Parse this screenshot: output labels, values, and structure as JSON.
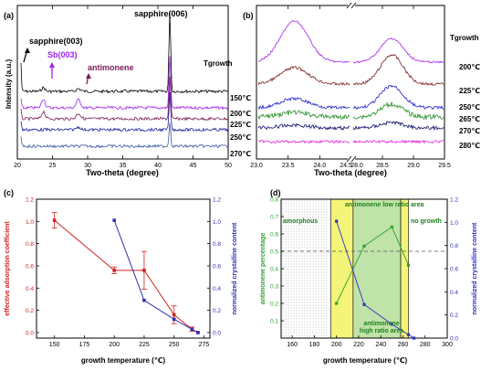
{
  "chart_data": [
    {
      "panel": "(a)",
      "type": "line",
      "xlabel": "Two-theta (degree)",
      "ylabel": "Intensity (a.u.)",
      "xlim": [
        20,
        50
      ],
      "xticks": [
        "20",
        "25",
        "30",
        "35",
        "40",
        "45",
        "50"
      ],
      "legend_title": "Tgrowth",
      "series": [
        {
          "name": "150℃",
          "color": "#000000"
        },
        {
          "name": "200℃",
          "color": "#a020f0"
        },
        {
          "name": "225℃",
          "color": "#7a1a55"
        },
        {
          "name": "250℃",
          "color": "#1a1aa0"
        },
        {
          "name": "270℃",
          "color": "#3b5ba0"
        }
      ],
      "annotations": [
        {
          "text": "sapphire(006)",
          "color": "#000000",
          "x": 41.7
        },
        {
          "text": "sapphire(003)",
          "color": "#000000",
          "x": 20.5
        },
        {
          "text": "Sb(003)",
          "color": "#a020f0",
          "x": 23.7
        },
        {
          "text": "antimonene",
          "color": "#7a1a55",
          "x": 28.8
        }
      ]
    },
    {
      "panel": "(b)",
      "type": "line",
      "xlabel": "Two-theta (degree)",
      "xticks": [
        "23.0",
        "23.5",
        "24.0",
        "24.5",
        "28.0",
        "28.5",
        "29.0",
        "29.5"
      ],
      "legend_title": "Tgrowth",
      "series": [
        {
          "name": "200℃",
          "color": "#a020f0"
        },
        {
          "name": "225℃",
          "color": "#7a1a1a"
        },
        {
          "name": "250℃",
          "color": "#1a1ad0"
        },
        {
          "name": "265℃",
          "color": "#208a20"
        },
        {
          "name": "270℃",
          "color": "#0a0a6a"
        },
        {
          "name": "280℃",
          "color": "#e020e0"
        }
      ],
      "peaks": [
        23.6,
        28.65
      ]
    },
    {
      "panel": "(c)",
      "type": "line",
      "xlabel": "growth temperature (℃)",
      "ylabel_left": "effective adsorption coefficient",
      "ylabel_right": "normalized crystalline content",
      "xlim": [
        135,
        280
      ],
      "ylim": [
        -0.05,
        1.2
      ],
      "xticks": [
        150,
        175,
        200,
        225,
        250,
        275
      ],
      "yticks": [
        "0.0",
        "0.2",
        "0.4",
        "0.6",
        "0.8",
        "1.0",
        "1.2"
      ],
      "series": [
        {
          "name": "effective adsorption coefficient",
          "color": "#d42020",
          "axis": "left",
          "x": [
            150,
            200,
            225,
            250,
            265,
            270
          ],
          "y": [
            1.01,
            0.56,
            0.56,
            0.16,
            0.03,
            0.0
          ],
          "err": [
            0.07,
            0.03,
            0.17,
            0.08,
            0.02,
            0.0
          ]
        },
        {
          "name": "normalized crystalline content",
          "color": "#3030b0",
          "axis": "right",
          "x": [
            200,
            225,
            250,
            265,
            270
          ],
          "y": [
            1.01,
            0.29,
            0.12,
            0.03,
            0.0
          ]
        }
      ]
    },
    {
      "panel": "(d)",
      "type": "line",
      "xlabel": "growth temperature (℃)",
      "ylabel_left": "antimonene percentage",
      "ylabel_right": "normalized crystalline content",
      "xlim": [
        150,
        300
      ],
      "ylim": [
        0,
        0.8
      ],
      "ylim_right": [
        0,
        1.2
      ],
      "xticks": [
        160,
        180,
        200,
        220,
        240,
        260,
        280,
        300
      ],
      "yticks_left": [
        "0.1",
        "0.2",
        "0.3",
        "0.4",
        "0.5",
        "0.6",
        "0.7",
        "0.8"
      ],
      "yticks_right": [
        "0.0",
        "0.2",
        "0.4",
        "0.6",
        "0.8",
        "1.0",
        "1.2"
      ],
      "regions": [
        {
          "label": "amorphous",
          "from": 150,
          "to": 195,
          "fill": "hatch"
        },
        {
          "label": "",
          "from": 195,
          "to": 215,
          "fill": "#f4f478"
        },
        {
          "label": "antimonene low ratio area",
          "from": 215,
          "to": 258,
          "fill": "#bfe3a8"
        },
        {
          "label": "",
          "from": 258,
          "to": 265,
          "fill": "#f4f478"
        },
        {
          "label": "no growth",
          "from": 265,
          "to": 300,
          "fill": "none"
        }
      ],
      "region_label_inner": "antimonene high ratio area",
      "dashed_line_y": 0.5,
      "series": [
        {
          "name": "antimonene percentage",
          "color": "#30a030",
          "axis": "left",
          "x": [
            200,
            225,
            250,
            265
          ],
          "y": [
            0.2,
            0.53,
            0.64,
            0.42
          ]
        },
        {
          "name": "normalized crystalline content",
          "color": "#3030c0",
          "axis": "right",
          "x": [
            200,
            225,
            250,
            265,
            270
          ],
          "y": [
            1.01,
            0.29,
            0.12,
            0.03,
            0.0
          ]
        }
      ]
    }
  ]
}
